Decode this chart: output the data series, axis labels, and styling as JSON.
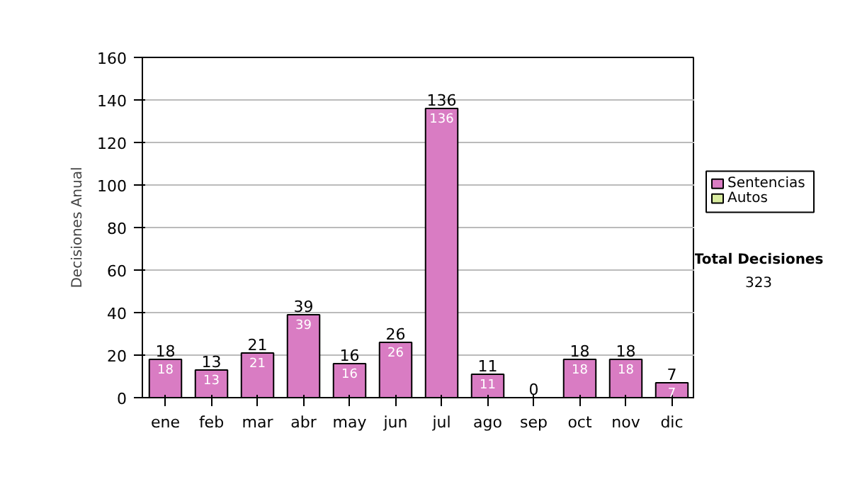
{
  "chart_data": {
    "type": "bar",
    "stacked": true,
    "ylabel": "Decisiones Anual",
    "categories": [
      "ene",
      "feb",
      "mar",
      "abr",
      "may",
      "jun",
      "jul",
      "ago",
      "sep",
      "oct",
      "nov",
      "dic"
    ],
    "series": [
      {
        "name": "Sentencias",
        "color": "#d97cc3",
        "values": [
          18,
          13,
          21,
          39,
          16,
          26,
          136,
          11,
          0,
          18,
          18,
          7
        ],
        "value_labels": [
          "18",
          "13",
          "21",
          "39",
          "16",
          "26",
          "136",
          "11",
          null,
          "18",
          "18",
          "7"
        ]
      },
      {
        "name": "Autos",
        "color": "#d9eca0",
        "values": [
          0,
          0,
          0,
          0,
          0,
          0,
          0,
          0,
          0,
          0,
          0,
          0
        ]
      }
    ],
    "totals": [
      "18",
      "13",
      "21",
      "39",
      "16",
      "26",
      "136",
      "11",
      "0",
      "18",
      "18",
      "7"
    ],
    "ylim": [
      0,
      160
    ],
    "yticks": [
      0,
      20,
      40,
      60,
      80,
      100,
      120,
      140,
      160
    ],
    "grid": "y",
    "legend": "right",
    "annotations": [
      "Total Decisiones",
      "323"
    ]
  }
}
